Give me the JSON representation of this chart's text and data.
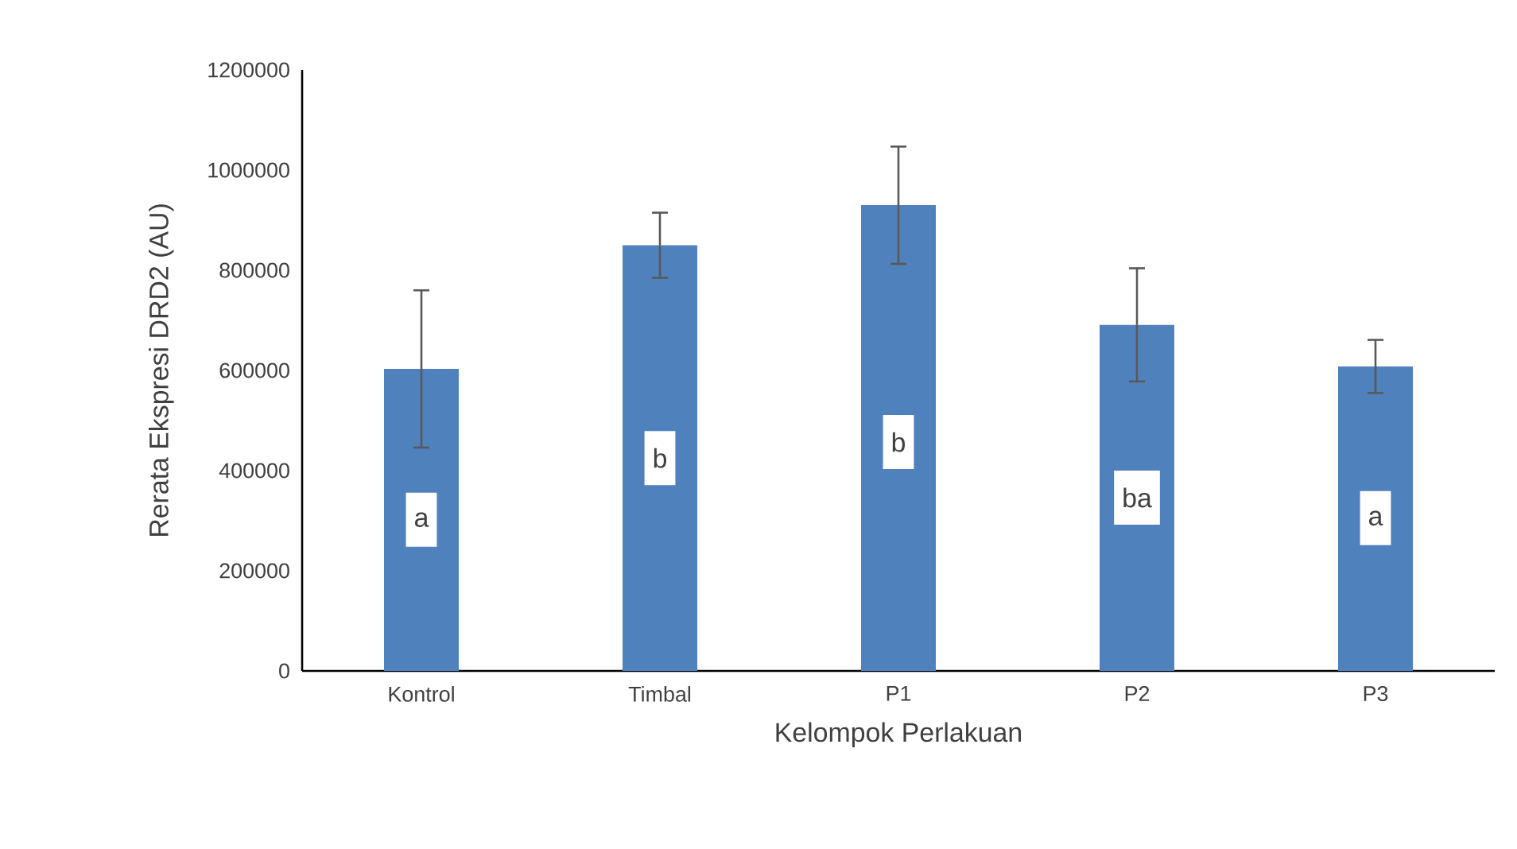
{
  "chart_data": {
    "type": "bar",
    "xlabel": "Kelompok Perlakuan",
    "ylabel": "Rerata Ekspresi DRD2 (AU)",
    "categories": [
      "Kontrol",
      "Timbal",
      "P1",
      "P2",
      "P3"
    ],
    "values": [
      603000,
      850000,
      930000,
      691000,
      608000
    ],
    "errors": [
      157000,
      65000,
      117000,
      113000,
      53000
    ],
    "color": "#4f81bd",
    "ylim": [
      0,
      1200000
    ],
    "yticks": [
      0,
      200000,
      400000,
      600000,
      800000,
      1000000,
      1200000
    ],
    "annotations": [
      {
        "text": "a",
        "x": "Kontrol",
        "y": 302000
      },
      {
        "text": "b",
        "x": "Timbal",
        "y": 425000
      },
      {
        "text": "b",
        "x": "P1",
        "y": 457000
      },
      {
        "text": "ba",
        "x": "P2",
        "y": 346000
      },
      {
        "text": "a",
        "x": "P3",
        "y": 305000
      }
    ]
  }
}
